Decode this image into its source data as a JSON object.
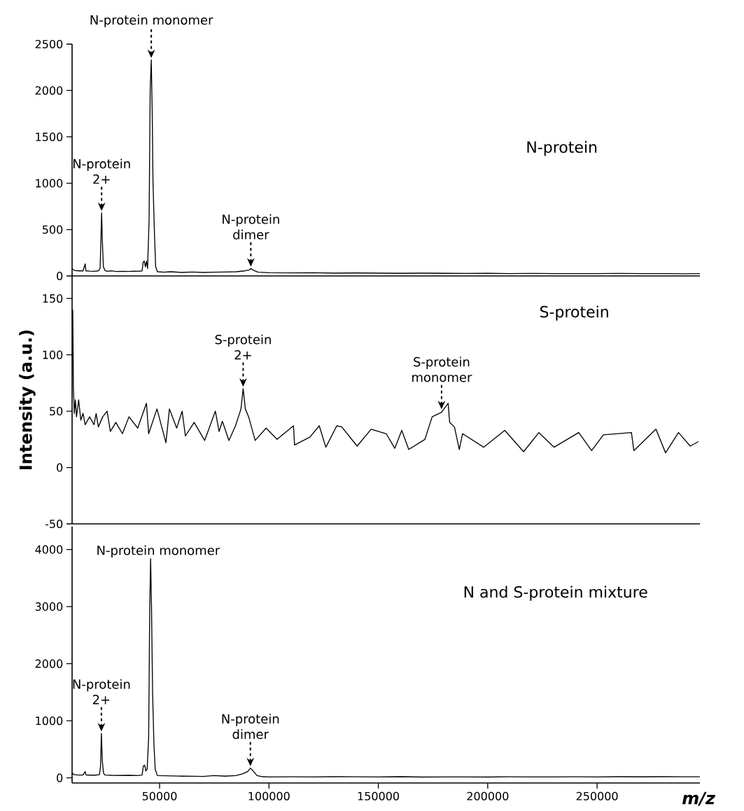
{
  "chart_data": [
    {
      "type": "line",
      "title": "N-protein",
      "color": "#000000",
      "xlim": [
        10000,
        297000
      ],
      "ylim": [
        0,
        2500
      ],
      "yticks": [
        0,
        500,
        1000,
        1500,
        2000,
        2500
      ],
      "tick_labels": "y",
      "x": [
        10000,
        11000,
        13000,
        15000,
        16000,
        16300,
        18000,
        20000,
        22000,
        22800,
        23200,
        23500,
        23800,
        24300,
        25000,
        26000,
        28000,
        30000,
        33000,
        36000,
        38000,
        40000,
        42000,
        42500,
        43000,
        43500,
        44000,
        44500,
        45200,
        45700,
        46200,
        46600,
        47000,
        47600,
        48200,
        49000,
        52000,
        55000,
        60000,
        65000,
        70000,
        75000,
        80000,
        85000,
        89000,
        91000,
        91700,
        93000,
        95000,
        100000,
        110000,
        120000,
        130000,
        140000,
        150000,
        160000,
        170000,
        180000,
        190000,
        200000,
        210000,
        220000,
        230000,
        240000,
        250000,
        260000,
        270000,
        280000,
        290000,
        297000
      ],
      "values": [
        80,
        60,
        55,
        55,
        130,
        55,
        52,
        50,
        55,
        80,
        400,
        680,
        400,
        100,
        60,
        50,
        55,
        48,
        50,
        48,
        52,
        50,
        55,
        150,
        160,
        100,
        160,
        80,
        600,
        2000,
        2330,
        1800,
        1000,
        500,
        100,
        45,
        40,
        45,
        38,
        42,
        38,
        40,
        42,
        45,
        55,
        65,
        80,
        60,
        40,
        35,
        33,
        35,
        30,
        32,
        30,
        28,
        30,
        28,
        27,
        28,
        26,
        27,
        25,
        26,
        25,
        27,
        25,
        26,
        24,
        25
      ],
      "annotations": [
        {
          "text": "N-protein monomer",
          "x": 46200,
          "y": 2330
        },
        {
          "text": "N-protein 2+",
          "x": 23500,
          "y": 680
        },
        {
          "text": "N-protein dimer",
          "x": 91700,
          "y": 80
        }
      ]
    },
    {
      "type": "line",
      "title": "S-protein",
      "ylabel": "Intensity (a.u.)",
      "color": "#000000",
      "xlim": [
        10000,
        297000
      ],
      "ylim": [
        -50,
        170
      ],
      "yticks": [
        -50,
        0,
        50,
        100,
        150
      ],
      "tick_labels": "y",
      "x": [
        10300,
        10600,
        11000,
        11500,
        12000,
        13000,
        14000,
        15000,
        16000,
        18000,
        20000,
        21000,
        22000,
        24000,
        26000,
        27500,
        30000,
        33000,
        36000,
        40000,
        44000,
        45000,
        48800,
        52900,
        54500,
        57800,
        60300,
        61800,
        65800,
        70600,
        75500,
        77200,
        78700,
        81700,
        84700,
        87200,
        88200,
        89200,
        90700,
        93700,
        98700,
        103700,
        111200,
        111700,
        118700,
        123000,
        126000,
        131000,
        133300,
        140300,
        146700,
        153600,
        157500,
        160700,
        163900,
        171300,
        174600,
        178900,
        181900,
        182600,
        184800,
        187000,
        188500,
        198200,
        207800,
        216400,
        223400,
        230300,
        241600,
        247500,
        252900,
        265700,
        266800,
        276900,
        281300,
        287200,
        292600,
        296300
      ],
      "values": [
        140,
        72,
        48,
        60,
        45,
        60,
        42,
        48,
        38,
        45,
        38,
        48,
        36,
        45,
        50,
        32,
        40,
        30,
        45,
        35,
        57,
        30,
        52,
        22,
        52,
        35,
        50,
        28,
        40,
        24,
        50,
        32,
        41,
        24,
        37,
        52,
        70,
        52,
        45,
        24,
        35,
        25,
        37,
        20,
        27,
        37,
        18,
        37,
        36,
        19,
        34,
        30,
        17,
        33,
        16,
        25,
        45,
        49,
        57,
        40,
        36,
        16,
        30,
        18,
        33,
        14,
        31,
        18,
        31,
        15,
        29,
        31,
        15,
        34,
        13,
        31,
        19,
        23
      ],
      "annotations": [
        {
          "text": "S-protein 2+",
          "x": 88200,
          "y": 70
        },
        {
          "text": "S-protein monomer",
          "x": 178900,
          "y": 50
        }
      ]
    },
    {
      "type": "line",
      "title": "N and S-protein mixture",
      "xlabel": "m/z",
      "color": "#000000",
      "xlim": [
        10000,
        297000
      ],
      "ylim": [
        -90,
        4400
      ],
      "xticks": [
        50000,
        100000,
        150000,
        200000,
        250000
      ],
      "yticks": [
        0,
        1000,
        2000,
        3000,
        4000
      ],
      "x": [
        10000,
        11000,
        13000,
        15000,
        16000,
        16400,
        18000,
        20000,
        22500,
        23000,
        23400,
        23800,
        24400,
        25000,
        28000,
        32000,
        36000,
        40000,
        42000,
        42600,
        43200,
        43700,
        44300,
        45000,
        45500,
        45900,
        46300,
        46800,
        47400,
        48000,
        49000,
        55000,
        60000,
        65000,
        70000,
        75000,
        80000,
        85000,
        88000,
        90300,
        91500,
        92800,
        94500,
        97000,
        100000,
        110000,
        120000,
        130000,
        140000,
        150000,
        160000,
        170000,
        180000,
        190000,
        200000,
        210000,
        220000,
        230000,
        240000,
        250000,
        260000,
        270000,
        280000,
        290000,
        297000
      ],
      "values": [
        80,
        55,
        50,
        50,
        110,
        50,
        48,
        45,
        55,
        200,
        780,
        300,
        80,
        50,
        45,
        42,
        45,
        40,
        50,
        210,
        220,
        120,
        150,
        700,
        3000,
        3840,
        3000,
        1500,
        600,
        150,
        40,
        35,
        30,
        28,
        25,
        40,
        30,
        40,
        70,
        110,
        170,
        120,
        40,
        20,
        15,
        18,
        15,
        20,
        18,
        15,
        20,
        14,
        16,
        15,
        14,
        18,
        15,
        16,
        18,
        16,
        20,
        17,
        20,
        18,
        19
      ],
      "annotations": [
        {
          "text": "N-protein monomer",
          "x": 45900,
          "y": 3840
        },
        {
          "text": "N-protein 2+",
          "x": 23400,
          "y": 780
        },
        {
          "text": "N-protein dimer",
          "x": 91500,
          "y": 170
        }
      ]
    }
  ]
}
